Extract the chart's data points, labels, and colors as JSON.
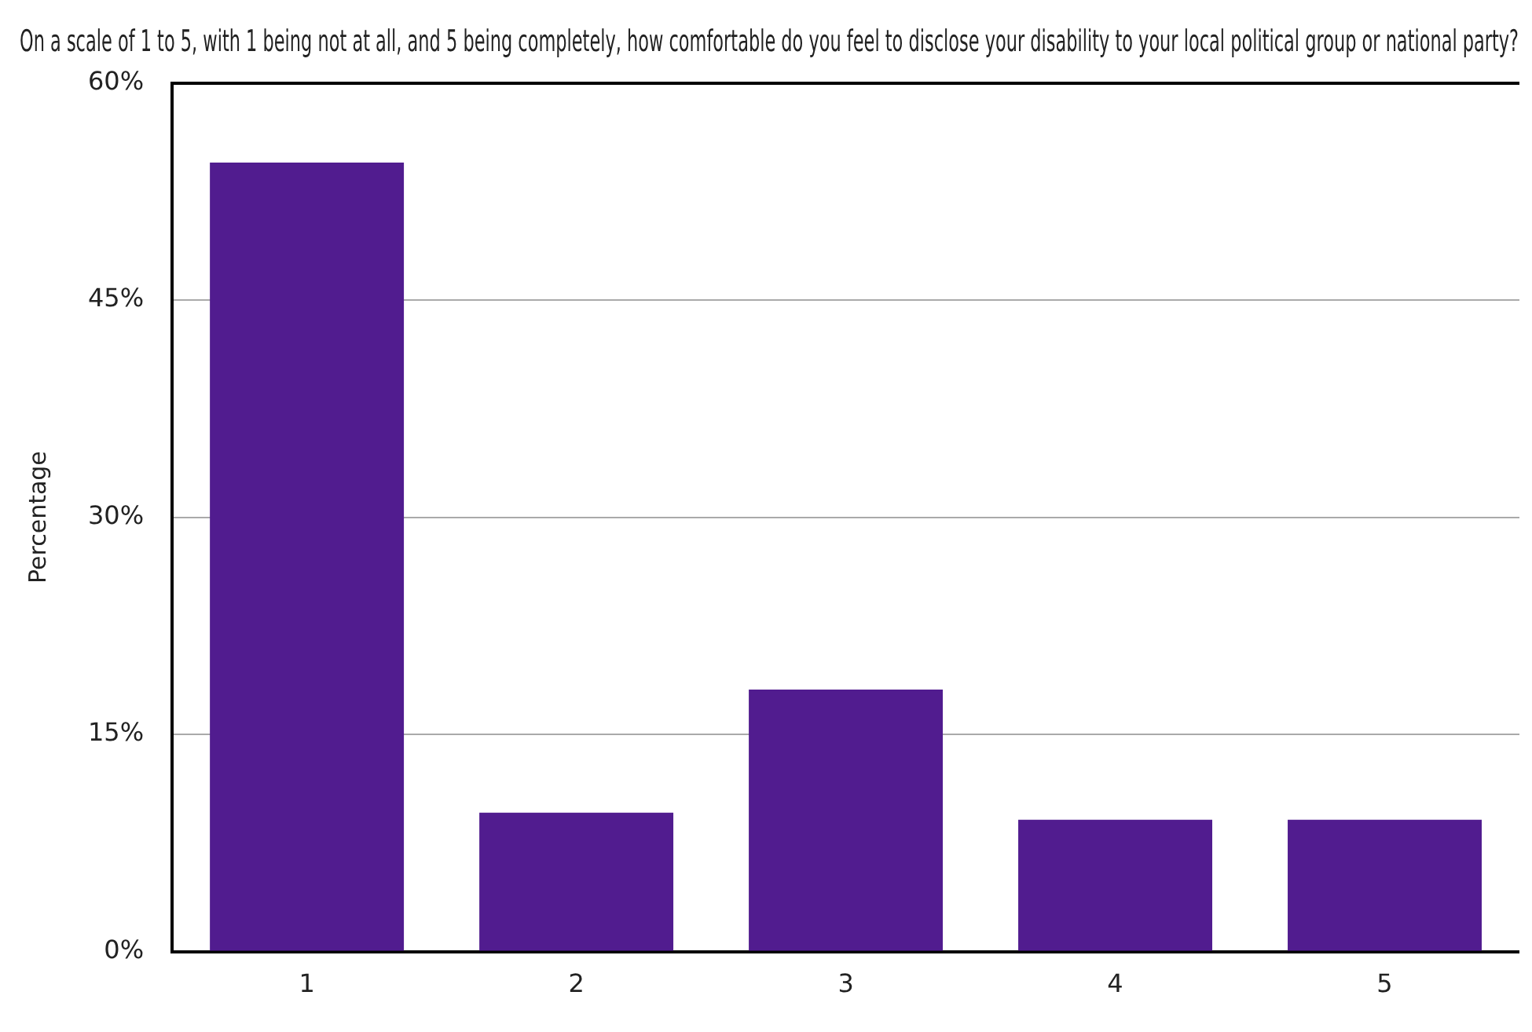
{
  "chart_data": {
    "type": "bar",
    "title": "On a scale of 1 to 5, with 1 being not at all, and 5 being completely, how comfortable do you feel to disclose your disability to your local political group or national party?",
    "ylabel": "Percentage",
    "categories": [
      "1",
      "2",
      "3",
      "4",
      "5"
    ],
    "values": [
      54.5,
      9.6,
      18.1,
      9.1,
      9.1
    ],
    "color": "#511c8f",
    "ylim": [
      0,
      60
    ],
    "yticks": [
      {
        "value": 0,
        "label": "0%"
      },
      {
        "value": 15,
        "label": "15%"
      },
      {
        "value": 30,
        "label": "30%"
      },
      {
        "value": 45,
        "label": "45%"
      },
      {
        "value": 60,
        "label": "60%"
      }
    ],
    "grid": "y",
    "legend": false
  }
}
